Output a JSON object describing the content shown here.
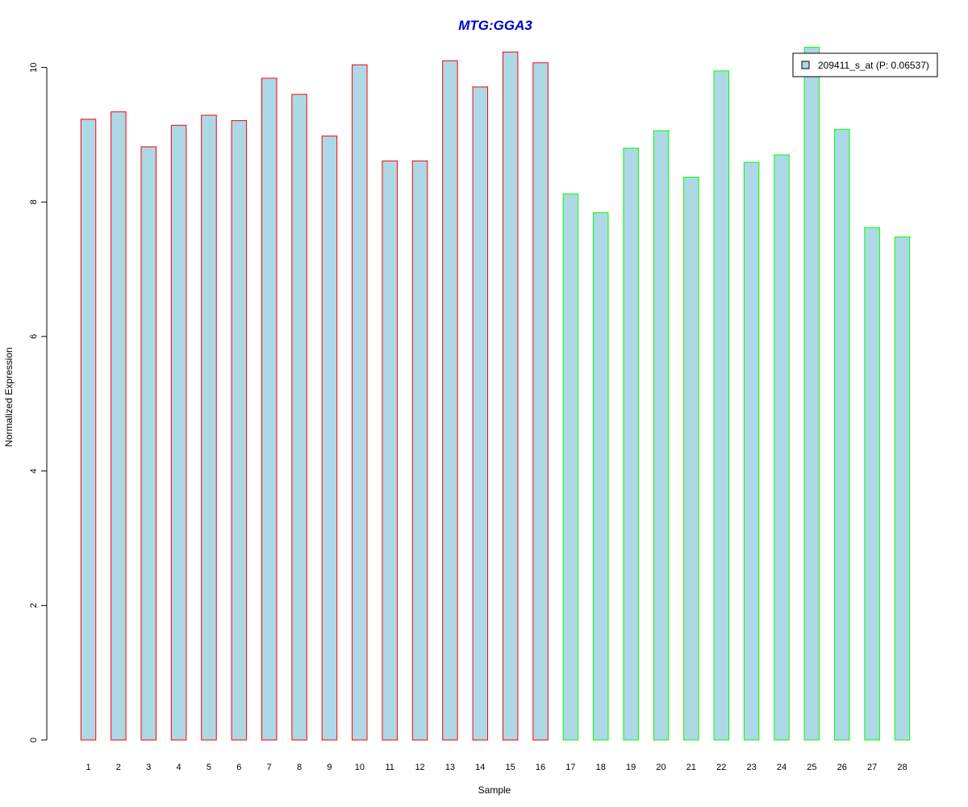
{
  "chart_data": {
    "type": "bar",
    "title": "MTG:GGA3",
    "xlabel": "Sample",
    "ylabel": "Normalized Expression",
    "ylim": [
      0,
      10.3
    ],
    "yticks": [
      "0",
      "2",
      "4",
      "6",
      "8",
      "10"
    ],
    "categories": [
      "1",
      "2",
      "3",
      "4",
      "5",
      "6",
      "7",
      "8",
      "9",
      "10",
      "11",
      "12",
      "13",
      "14",
      "15",
      "16",
      "17",
      "18",
      "19",
      "20",
      "21",
      "22",
      "23",
      "24",
      "25",
      "26",
      "27",
      "28"
    ],
    "values": [
      9.23,
      9.34,
      8.82,
      9.14,
      9.29,
      9.21,
      9.84,
      9.6,
      8.98,
      10.04,
      8.61,
      8.61,
      10.1,
      9.71,
      10.23,
      10.07,
      8.12,
      7.84,
      8.8,
      9.06,
      8.37,
      9.95,
      8.59,
      8.7,
      10.3,
      9.08,
      7.62,
      7.48
    ],
    "groups": [
      "red",
      "red",
      "red",
      "red",
      "red",
      "red",
      "red",
      "red",
      "red",
      "red",
      "red",
      "red",
      "red",
      "red",
      "red",
      "red",
      "green",
      "green",
      "green",
      "green",
      "green",
      "green",
      "green",
      "green",
      "green",
      "green",
      "green",
      "green"
    ],
    "legend": {
      "label": "209411_s_at (P: 0.06537)",
      "position": "top-right"
    },
    "colors": {
      "title": "#0000CC",
      "bar_fill": "#ADD8E6",
      "red": "#FF0000",
      "green": "#00FF00",
      "axis": "#000000"
    },
    "grid": false
  }
}
